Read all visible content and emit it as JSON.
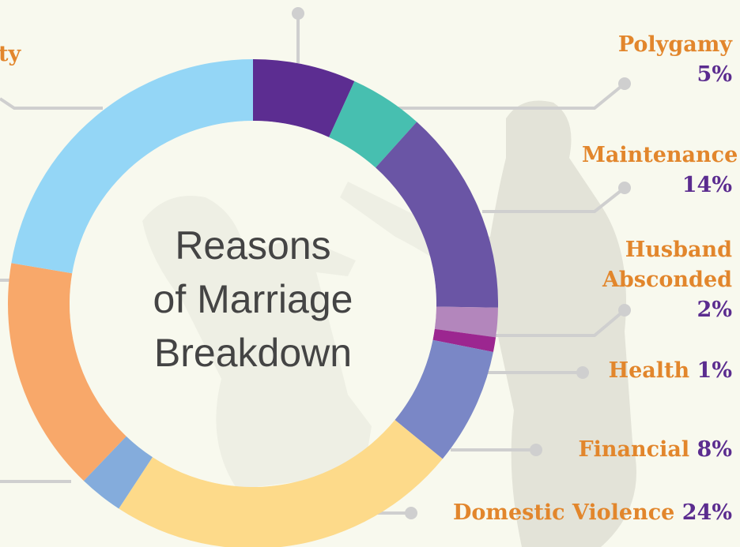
{
  "chart_data": {
    "type": "donut",
    "title": [
      "Reasons",
      "of Marriage",
      "Breakdown"
    ],
    "categories": [
      null,
      "Polygamy",
      "Maintenance",
      "Husband Absconded",
      "Health",
      "Financial",
      "Domestic Violence",
      null,
      null,
      "ty"
    ],
    "values": [
      7,
      5,
      14,
      2,
      1,
      8,
      24,
      3,
      16,
      23
    ],
    "value_labels": [
      null,
      "5%",
      "14%",
      "2%",
      "1%",
      "8%",
      "24%",
      null,
      null,
      null
    ],
    "colors": [
      "#5c2d91",
      "#47bfb0",
      "#6a55a5",
      "#b386bc",
      "#9c2690",
      "#7a87c6",
      "#fdda8a",
      "#84acdc",
      "#f8a86a",
      "#94d6f6"
    ]
  }
}
